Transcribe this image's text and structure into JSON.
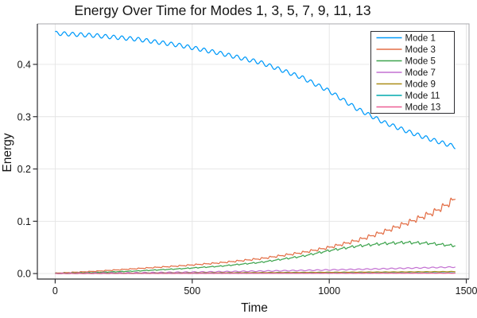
{
  "chart_data": {
    "type": "line",
    "title": "Energy Over Time for Modes 1, 3, 5, 7, 9, 11, 13",
    "xlabel": "Time",
    "ylabel": "Energy",
    "xlim": [
      -65,
      1510
    ],
    "ylim": [
      -0.0105,
      0.4775
    ],
    "x_tick_values": [
      0,
      500,
      1000,
      1500
    ],
    "x_tick_labels": [
      "0",
      "500",
      "1000",
      "1500"
    ],
    "y_tick_values": [
      0,
      0.1,
      0.2,
      0.3,
      0.4
    ],
    "y_tick_labels": [
      "0.0",
      "0.1",
      "0.2",
      "0.3",
      "0.4"
    ],
    "grid": true,
    "legend_position": "top-right",
    "background_color": "#FFFFFF",
    "grid_color": "#E4E4E4",
    "axis_color": "#2E2E32",
    "frame_color": "#A8A8AD",
    "text_color": "#151515",
    "osc_period": 30,
    "t_end": 1460,
    "series": [
      {
        "name": "Mode 1",
        "color": "#009AFA",
        "wave": "sine",
        "osc_amp": 0.0038,
        "amp_rel": 0,
        "phase": 0.8,
        "keypoints": [
          [
            0,
            0.4595
          ],
          [
            150,
            0.455
          ],
          [
            300,
            0.448
          ],
          [
            460,
            0.436
          ],
          [
            600,
            0.4215
          ],
          [
            750,
            0.4035
          ],
          [
            900,
            0.375
          ],
          [
            1000,
            0.349
          ],
          [
            1100,
            0.3155
          ],
          [
            1200,
            0.289
          ],
          [
            1300,
            0.269
          ],
          [
            1380,
            0.255
          ],
          [
            1460,
            0.2425
          ]
        ]
      },
      {
        "name": "Mode 3",
        "color": "#E36F47",
        "wave": "saw",
        "osc_amp": 0.0005,
        "amp_rel": 0.045,
        "phase": 0,
        "keypoints": [
          [
            0,
            0.0008
          ],
          [
            150,
            0.0045
          ],
          [
            300,
            0.0095
          ],
          [
            450,
            0.0145
          ],
          [
            600,
            0.0205
          ],
          [
            750,
            0.0285
          ],
          [
            900,
            0.04
          ],
          [
            1000,
            0.05
          ],
          [
            1100,
            0.063
          ],
          [
            1200,
            0.08
          ],
          [
            1300,
            0.1
          ],
          [
            1380,
            0.117
          ],
          [
            1430,
            0.132
          ],
          [
            1460,
            0.1435
          ]
        ]
      },
      {
        "name": "Mode 5",
        "color": "#3EA44E",
        "wave": "sawdown",
        "osc_amp": 0.0004,
        "amp_rel": 0.035,
        "phase": 1.6,
        "keypoints": [
          [
            0,
            0.0004
          ],
          [
            150,
            0.0022
          ],
          [
            300,
            0.005
          ],
          [
            450,
            0.009
          ],
          [
            600,
            0.014
          ],
          [
            750,
            0.0215
          ],
          [
            900,
            0.033
          ],
          [
            1000,
            0.044
          ],
          [
            1100,
            0.0525
          ],
          [
            1200,
            0.0575
          ],
          [
            1280,
            0.0595
          ],
          [
            1360,
            0.058
          ],
          [
            1460,
            0.053
          ]
        ]
      },
      {
        "name": "Mode 7",
        "color": "#C371D2",
        "wave": "sine",
        "osc_amp": 0.0007,
        "amp_rel": 0.02,
        "phase": 2.2,
        "keypoints": [
          [
            0,
            0.0003
          ],
          [
            300,
            0.0015
          ],
          [
            600,
            0.0035
          ],
          [
            900,
            0.006
          ],
          [
            1100,
            0.008
          ],
          [
            1300,
            0.0105
          ],
          [
            1460,
            0.0125
          ]
        ]
      },
      {
        "name": "Mode 9",
        "color": "#AC8E18",
        "wave": "sine",
        "osc_amp": 0.0003,
        "amp_rel": 0,
        "phase": 0.5,
        "keypoints": [
          [
            0,
            0.0002
          ],
          [
            400,
            0.001
          ],
          [
            800,
            0.002
          ],
          [
            1200,
            0.003
          ],
          [
            1460,
            0.0038
          ]
        ]
      },
      {
        "name": "Mode 11",
        "color": "#00AAAE",
        "wave": "sine",
        "osc_amp": 0.00025,
        "amp_rel": 0,
        "phase": 1.1,
        "keypoints": [
          [
            0,
            0.0001
          ],
          [
            600,
            0.0006
          ],
          [
            1100,
            0.001
          ],
          [
            1460,
            0.0013
          ]
        ]
      },
      {
        "name": "Mode 13",
        "color": "#ED5E93",
        "wave": "sine",
        "osc_amp": 0.00015,
        "amp_rel": 0,
        "phase": 2.9,
        "keypoints": [
          [
            0,
            5e-05
          ],
          [
            500,
            0.0003
          ],
          [
            1000,
            0.0005
          ],
          [
            1460,
            0.0007
          ]
        ]
      }
    ]
  }
}
